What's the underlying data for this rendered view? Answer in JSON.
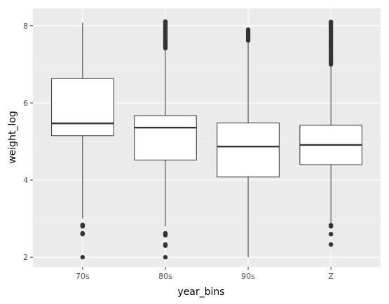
{
  "chart_data": {
    "type": "boxplot",
    "xlabel": "year_bins",
    "ylabel": "weight_log",
    "categories": [
      "70s",
      "80s",
      "90s",
      "Z"
    ],
    "ylim": [
      1.75,
      8.45
    ],
    "yticks": [
      2,
      4,
      6,
      8
    ],
    "ytick_labels": [
      "2",
      "4",
      "6",
      "8"
    ],
    "grid": true,
    "colors": {
      "panel_background": "#ebebeb",
      "grid_major": "#ffffff",
      "box_fill": "#ffffff",
      "box_stroke": "#333333",
      "outlier": "#333333"
    },
    "boxes": [
      {
        "category": "70s",
        "whisker_low": 3.0,
        "q1": 5.15,
        "median": 5.47,
        "q3": 6.63,
        "whisker_high": 8.08,
        "outliers": [
          2.0,
          2.6,
          2.62,
          2.8,
          2.82,
          2.84
        ]
      },
      {
        "category": "80s",
        "whisker_low": 2.8,
        "q1": 4.52,
        "median": 5.36,
        "q3": 5.67,
        "whisker_high": 7.4,
        "outliers": [
          2.0,
          2.3,
          2.33,
          2.57,
          2.6,
          2.62,
          7.42,
          7.45,
          7.48,
          7.5,
          7.52,
          7.55,
          7.58,
          7.62,
          7.65,
          7.68,
          7.72,
          7.75,
          7.8,
          7.84,
          7.88,
          7.92,
          7.96,
          8.0,
          8.04,
          8.08,
          8.11
        ]
      },
      {
        "category": "90s",
        "whisker_low": 2.0,
        "q1": 4.08,
        "median": 4.87,
        "q3": 5.48,
        "whisker_high": 7.58,
        "outliers": [
          7.62,
          7.66,
          7.7,
          7.74,
          7.78,
          7.82,
          7.86,
          7.9
        ]
      },
      {
        "category": "Z",
        "whisker_low": 2.85,
        "q1": 4.4,
        "median": 4.91,
        "q3": 5.42,
        "whisker_high": 6.98,
        "outliers": [
          2.33,
          2.6,
          2.8,
          2.83,
          7.0,
          7.04,
          7.08,
          7.12,
          7.16,
          7.2,
          7.25,
          7.3,
          7.35,
          7.4,
          7.45,
          7.5,
          7.55,
          7.6,
          7.65,
          7.7,
          7.75,
          7.8,
          7.85,
          7.9,
          7.95,
          8.0,
          8.05,
          8.1
        ]
      }
    ]
  }
}
